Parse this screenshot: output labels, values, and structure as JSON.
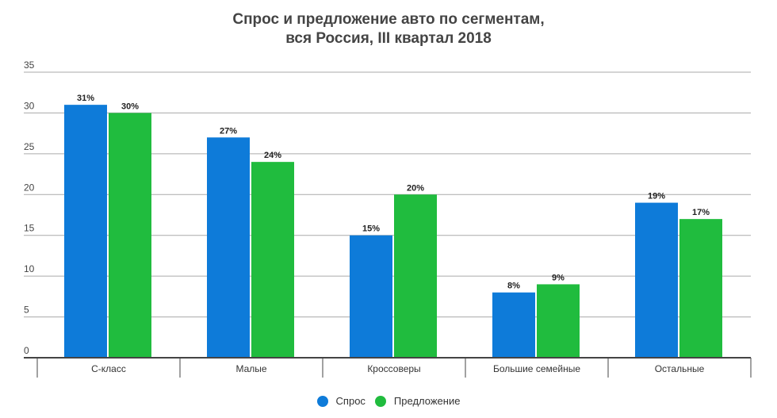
{
  "chart_data": {
    "type": "bar",
    "title": [
      "Спрос и предложение авто по сегментам,",
      "вся Россия, III квартал 2018"
    ],
    "categories": [
      "С-класс",
      "Малые",
      "Кроссоверы",
      "Большие семейные",
      "Остальные"
    ],
    "series": [
      {
        "name": "Спрос",
        "values": [
          31,
          27,
          15,
          8,
          19
        ],
        "labels": [
          "31%",
          "27%",
          "15%",
          "8%",
          "19%"
        ],
        "color": "#0e7bd9"
      },
      {
        "name": "Предложение",
        "values": [
          30,
          24,
          20,
          9,
          17
        ],
        "labels": [
          "30%",
          "24%",
          "20%",
          "9%",
          "17%"
        ],
        "color": "#20bc3e"
      }
    ],
    "ylim": [
      0,
      35
    ],
    "yticks": [
      "0",
      "5",
      "10",
      "15",
      "20",
      "25",
      "30",
      "35"
    ],
    "grid": true,
    "legend": "bottom",
    "xlabel": "",
    "ylabel": ""
  }
}
